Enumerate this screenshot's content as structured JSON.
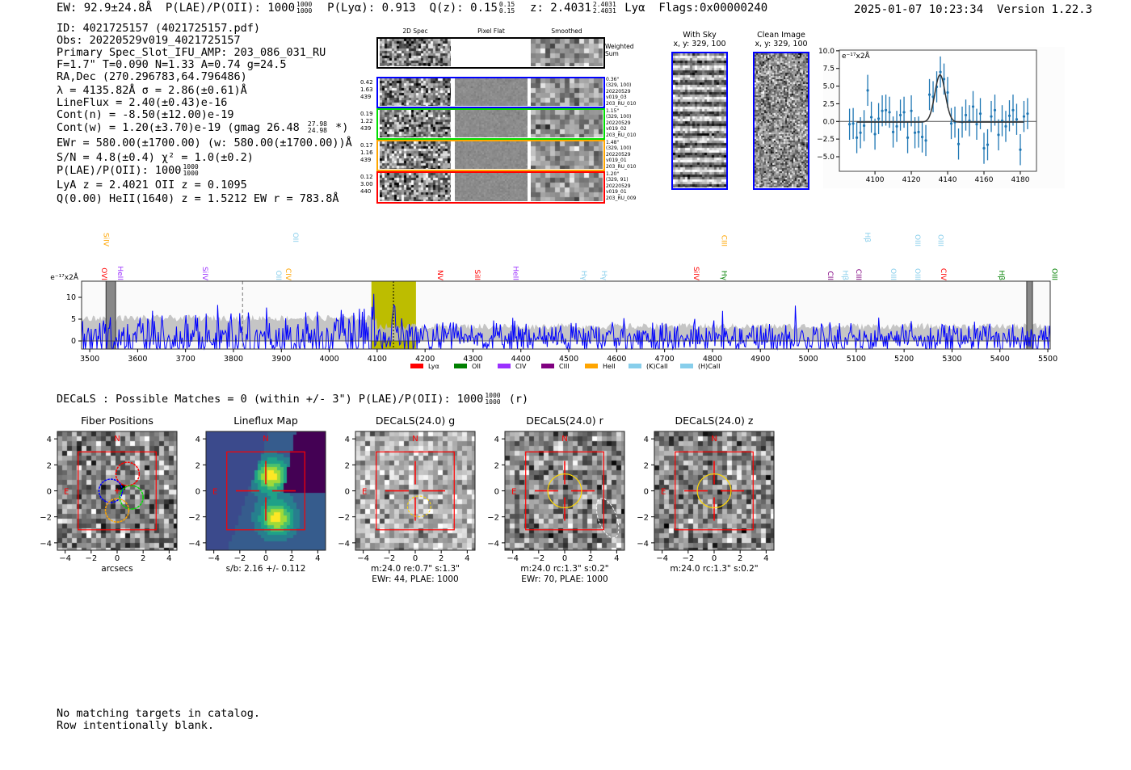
{
  "header": {
    "ew": "EW: 92.9±24.8Å",
    "plae_label": "P(LAE)/P(OII): 1000",
    "plae_hi": "1000",
    "plae_lo": "1000",
    "plya": "P(Lyα): 0.913",
    "qz_label": "Q(z): 0.15",
    "qz_hi": "0.15",
    "qz_lo": "0.15",
    "z_label": "z: 2.4031",
    "z_hi": "2.4031",
    "z_lo": "2.4031",
    "line": "Lyα",
    "flags": "Flags:0x00000240",
    "timestamp": "2025-01-07 10:23:34",
    "version": "Version 1.22.3"
  },
  "info": {
    "id": "ID: 4021725157 (4021725157.pdf)",
    "obs": "Obs: 20220529v019_4021725157",
    "primary": "Primary Spec_Slot_IFU_AMP: 203_086_031_RU",
    "params": "F=1.7\"  T=0.090  N=1.33  A=0.74  g=24.5",
    "radec": "RA,Dec (270.296783,64.796486)",
    "lambda": "λ = 4135.82Å   σ = 2.86(±0.61)Å",
    "lineflux": "LineFlux = 2.40(±0.43)e-16",
    "cont_n": "Cont(n) = -8.50(±12.00)e-19",
    "cont_w": "Cont(w) = 1.20(±3.70)e-19 (gmag 26.48",
    "gmag_hi": "27.98",
    "gmag_lo": "24.98",
    "cont_w_end": "*)",
    "ewr": "EWr = 580.00(±1700.00) (w: 580.00(±1700.00))Å",
    "sn": "S/N = 4.8(±0.4)  χ² = 1.0(±0.2)",
    "plae": "P(LAE)/P(OII): 1000",
    "plae_hi": "1000",
    "plae_lo": "1000",
    "lya": "LyA z = 2.4021  OII z = 0.1095",
    "heii": "Q(0.00) HeII(1640) z = 1.5212  EW r = 783.8Å"
  },
  "cutouts": {
    "col_headers": [
      "2D Spec",
      "Pixel Flat",
      "Smoothed"
    ],
    "weighted_label": "Weighted Sum",
    "rows": [
      {
        "color": "#0000ff",
        "left": [
          "0.42",
          "1.63",
          "439"
        ],
        "right": [
          "0.36\"",
          "(329, 100)",
          "20220529",
          "v019_03",
          "203_RU_010"
        ]
      },
      {
        "color": "#00dd00",
        "left": [
          "0.19",
          "1.22",
          "439"
        ],
        "right": [
          "1.15\"",
          "(329, 100)",
          "20220529",
          "v019_02",
          "203_RU_010"
        ]
      },
      {
        "color": "#ffa500",
        "left": [
          "0.17",
          "1.16",
          "439"
        ],
        "right": [
          "1.48\"",
          "(329, 100)",
          "20220529",
          "v019_01",
          "203_RU_010"
        ]
      },
      {
        "color": "#ff0000",
        "left": [
          "0.12",
          "3.00",
          "440"
        ],
        "right": [
          "1.20\"",
          "(329, 91)",
          "20220529",
          "v019_01",
          "203_RU_009"
        ]
      }
    ],
    "with_sky": {
      "title": "With Sky",
      "sub": "x, y: 329, 100"
    },
    "clean": {
      "title": "Clean Image",
      "sub": "x, y: 329, 100"
    }
  },
  "chart_data": [
    {
      "type": "scatter",
      "title": "",
      "ylabel": "e⁻¹⁷x2Å",
      "xlim": [
        4080.4,
        4188.9
      ],
      "ylim": [
        -7.06,
        10.1
      ],
      "xticks": [
        "4100",
        "4120",
        "4140",
        "4160",
        "4180"
      ],
      "yticks": [
        "10.0",
        "7.5",
        "5.0",
        "2.5",
        "0.0",
        "−2.5",
        "−5.0"
      ],
      "x": [
        4086,
        4088,
        4090,
        4092,
        4094,
        4096,
        4098,
        4100,
        4102,
        4104,
        4106,
        4108,
        4110,
        4112,
        4114,
        4116,
        4118,
        4120,
        4122,
        4124,
        4126,
        4128,
        4130,
        4132,
        4134,
        4136,
        4138,
        4140,
        4142,
        4144,
        4146,
        4148,
        4150,
        4152,
        4154,
        4156,
        4158,
        4160,
        4162,
        4164,
        4166,
        4168,
        4170,
        4172,
        4174,
        4176,
        4178,
        4180,
        4182,
        4184
      ],
      "y": [
        -0.4,
        -0.3,
        -2.3,
        -1.6,
        -0.6,
        4.4,
        0.6,
        -1.8,
        0.4,
        1.5,
        1.6,
        1.3,
        -1.5,
        -0.7,
        0.9,
        1.3,
        -2.3,
        1.5,
        -1.6,
        -1.5,
        -2.2,
        -2.7,
        3.8,
        3.5,
        4.9,
        7.0,
        6.0,
        4.1,
        -0.3,
        -0.1,
        -3.2,
        -0.1,
        0.9,
        0.1,
        2.1,
        -0.4,
        1.1,
        -3.8,
        -3.3,
        0.7,
        1.6,
        -1.9,
        0.1,
        -0.7,
        0.8,
        1.6,
        0.3,
        -4.0,
        0.7,
        1.1
      ],
      "err": 2.2,
      "fit": {
        "center": 4135.82,
        "sigma": 2.86,
        "amplitude": 6.7,
        "continuum": -0.1,
        "range": [
          4090,
          4182
        ]
      }
    },
    {
      "type": "line",
      "ylabel": "e⁻¹⁷x2Å",
      "xlim": [
        3483,
        5505
      ],
      "ylim": [
        -1.85,
        13.7
      ],
      "xticks": [
        "3500",
        "3600",
        "3700",
        "3800",
        "3900",
        "4000",
        "4100",
        "4200",
        "4300",
        "4400",
        "4500",
        "4600",
        "4700",
        "4800",
        "4900",
        "5000",
        "5100",
        "5200",
        "5300",
        "5400",
        "5500"
      ],
      "yticks": [
        "10",
        "5",
        "0"
      ],
      "highlight_band": [
        4088,
        4181
      ],
      "line_wavelength": 4134,
      "dashed_marker": 3819,
      "masked": [
        [
          3534,
          3554
        ],
        [
          5456,
          5468
        ]
      ],
      "noise_sigma": 2.2,
      "emission": {
        "center": 4135.82,
        "amp": 7
      },
      "lines": [
        {
          "name": "OVI",
          "w": 3520,
          "color": "#ff0000",
          "row": 1
        },
        {
          "name": "HeII",
          "w": 3554,
          "color": "#9b30ff",
          "row": 1
        },
        {
          "name": "SiIV",
          "w": 3524,
          "color": "#ffa500",
          "row": 0
        },
        {
          "name": "SiIV",
          "w": 3731,
          "color": "#9b30ff",
          "row": 1
        },
        {
          "name": "OII",
          "w": 3884,
          "color": "#87ceeb",
          "row": 1
        },
        {
          "name": "CIV",
          "w": 3905,
          "color": "#ffa500",
          "row": 1
        },
        {
          "name": "OII",
          "w": 3920,
          "color": "#87ceeb",
          "row": 1
        },
        {
          "name": "NV",
          "w": 4222,
          "color": "#ff0000",
          "row": 1
        },
        {
          "name": "SiII",
          "w": 4299,
          "color": "#ff0000",
          "row": 1
        },
        {
          "name": "HeII",
          "w": 4379,
          "color": "#9b30ff",
          "row": 1
        },
        {
          "name": "Hγ",
          "w": 4522,
          "color": "#87ceeb",
          "row": 1
        },
        {
          "name": "Hγ",
          "w": 4564,
          "color": "#87ceeb",
          "row": 1
        },
        {
          "name": "SiIV",
          "w": 4756,
          "color": "#ff0000",
          "row": 1
        },
        {
          "name": "CIII",
          "w": 4814,
          "color": "#ffa500",
          "row": 0
        },
        {
          "name": "Hγ",
          "w": 4814,
          "color": "#008000",
          "row": 1
        },
        {
          "name": "CII",
          "w": 5036,
          "color": "#800080",
          "row": 1
        },
        {
          "name": "Hβ",
          "w": 5067,
          "color": "#87ceeb",
          "row": 1
        },
        {
          "name": "CIII",
          "w": 5095,
          "color": "#800080",
          "row": 1
        },
        {
          "name": "Hβ",
          "w": 5114,
          "color": "#87ceeb",
          "row": 1
        },
        {
          "name": "OIII",
          "w": 5168,
          "color": "#87ceeb",
          "row": 1
        },
        {
          "name": "OIII",
          "w": 5218,
          "color": "#87ceeb",
          "row": 1
        },
        {
          "name": "OIII",
          "w": 5218,
          "color": "#87ceeb",
          "row": 0
        },
        {
          "name": "OIII",
          "w": 5266,
          "color": "#87ceeb",
          "row": 0
        },
        {
          "name": "CIV",
          "w": 5272,
          "color": "#ff0000",
          "row": 1
        },
        {
          "name": "Hβ",
          "w": 5394,
          "color": "#008000",
          "row": 1
        },
        {
          "name": "OIII",
          "w": 5504,
          "color": "#008000",
          "row": 1
        }
      ],
      "legend": [
        {
          "name": "Lyα",
          "color": "#ff0000"
        },
        {
          "name": "OII",
          "color": "#008000"
        },
        {
          "name": "CIV",
          "color": "#9b30ff"
        },
        {
          "name": "CIII",
          "color": "#800080"
        },
        {
          "name": "HeII",
          "color": "#ffa500"
        },
        {
          "name": "(K)CaII",
          "color": "#87ceeb"
        },
        {
          "name": "(H)CaII",
          "color": "#87ceeb"
        }
      ]
    }
  ],
  "decals": {
    "summary": "DECaLS : Possible Matches = 0 (within +/- 3\")  P(LAE)/P(OII): 1000",
    "plae_hi": "1000",
    "plae_lo": "1000",
    "band": "(r)",
    "ticks": [
      "4",
      "2",
      "0",
      "−2",
      "−4"
    ],
    "xticks": [
      "−4",
      "−2",
      "0",
      "2",
      "4"
    ],
    "compass_n": "N",
    "compass_e": "E",
    "panels": [
      {
        "title": "Fiber Positions",
        "cap1": "arcsecs",
        "cap2": ""
      },
      {
        "title": "Lineflux Map",
        "cap1": "s/b: 2.16 +/- 0.112",
        "cap2": ""
      },
      {
        "title": "DECaLS(24.0) g",
        "cap1": "m:24.0  re:0.7\"  s:1.3\"",
        "cap2": "EWr: 44, PLAE: 1000"
      },
      {
        "title": "DECaLS(24.0) r",
        "cap1": "m:24.0 rc:1.3\"  s:0.2\"",
        "cap2": "EWr: 70, PLAE: 1000"
      },
      {
        "title": "DECaLS(24.0) z",
        "cap1": "m:24.0 rc:1.3\"  s:0.2\"",
        "cap2": ""
      }
    ]
  },
  "footer": {
    "line1": "No matching targets in catalog.",
    "line2": "Row intentionally blank."
  }
}
